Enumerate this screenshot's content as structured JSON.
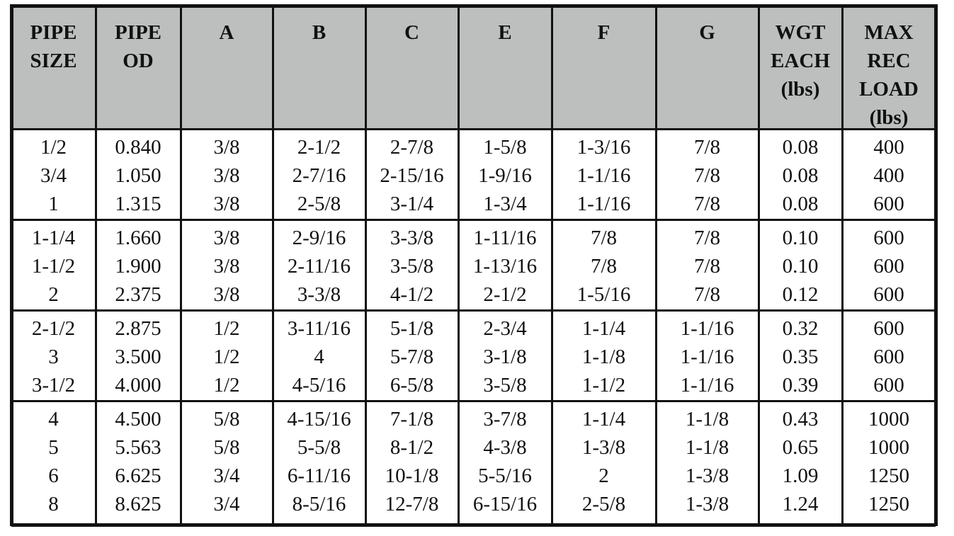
{
  "table": {
    "header": [
      [
        "PIPE",
        "SIZE"
      ],
      [
        "PIPE",
        "OD"
      ],
      [
        "A"
      ],
      [
        "B"
      ],
      [
        "C"
      ],
      [
        "E"
      ],
      [
        "F"
      ],
      [
        "G"
      ],
      [
        "WGT",
        "EACH",
        "(lbs)"
      ],
      [
        "MAX",
        "REC",
        "LOAD",
        "(lbs)"
      ]
    ],
    "groups": [
      [
        [
          "1/2",
          "0.840",
          "3/8",
          "2-1/2",
          "2-7/8",
          "1-5/8",
          "1-3/16",
          "7/8",
          "0.08",
          "400"
        ],
        [
          "3/4",
          "1.050",
          "3/8",
          "2-7/16",
          "2-15/16",
          "1-9/16",
          "1-1/16",
          "7/8",
          "0.08",
          "400"
        ],
        [
          "1",
          "1.315",
          "3/8",
          "2-5/8",
          "3-1/4",
          "1-3/4",
          "1-1/16",
          "7/8",
          "0.08",
          "600"
        ]
      ],
      [
        [
          "1-1/4",
          "1.660",
          "3/8",
          "2-9/16",
          "3-3/8",
          "1-11/16",
          "7/8",
          "7/8",
          "0.10",
          "600"
        ],
        [
          "1-1/2",
          "1.900",
          "3/8",
          "2-11/16",
          "3-5/8",
          "1-13/16",
          "7/8",
          "7/8",
          "0.10",
          "600"
        ],
        [
          "2",
          "2.375",
          "3/8",
          "3-3/8",
          "4-1/2",
          "2-1/2",
          "1-5/16",
          "7/8",
          "0.12",
          "600"
        ]
      ],
      [
        [
          "2-1/2",
          "2.875",
          "1/2",
          "3-11/16",
          "5-1/8",
          "2-3/4",
          "1-1/4",
          "1-1/16",
          "0.32",
          "600"
        ],
        [
          "3",
          "3.500",
          "1/2",
          "4",
          "5-7/8",
          "3-1/8",
          "1-1/8",
          "1-1/16",
          "0.35",
          "600"
        ],
        [
          "3-1/2",
          "4.000",
          "1/2",
          "4-5/16",
          "6-5/8",
          "3-5/8",
          "1-1/2",
          "1-1/16",
          "0.39",
          "600"
        ]
      ],
      [
        [
          "4",
          "4.500",
          "5/8",
          "4-15/16",
          "7-1/8",
          "3-7/8",
          "1-1/4",
          "1-1/8",
          "0.43",
          "1000"
        ],
        [
          "5",
          "5.563",
          "5/8",
          "5-5/8",
          "8-1/2",
          "4-3/8",
          "1-3/8",
          "1-1/8",
          "0.65",
          "1000"
        ],
        [
          "6",
          "6.625",
          "3/4",
          "6-11/16",
          "10-1/8",
          "5-5/16",
          "2",
          "1-3/8",
          "1.09",
          "1250"
        ],
        [
          "8",
          "8.625",
          "3/4",
          "8-5/16",
          "12-7/8",
          "6-15/16",
          "2-5/8",
          "1-3/8",
          "1.24",
          "1250"
        ]
      ]
    ]
  }
}
